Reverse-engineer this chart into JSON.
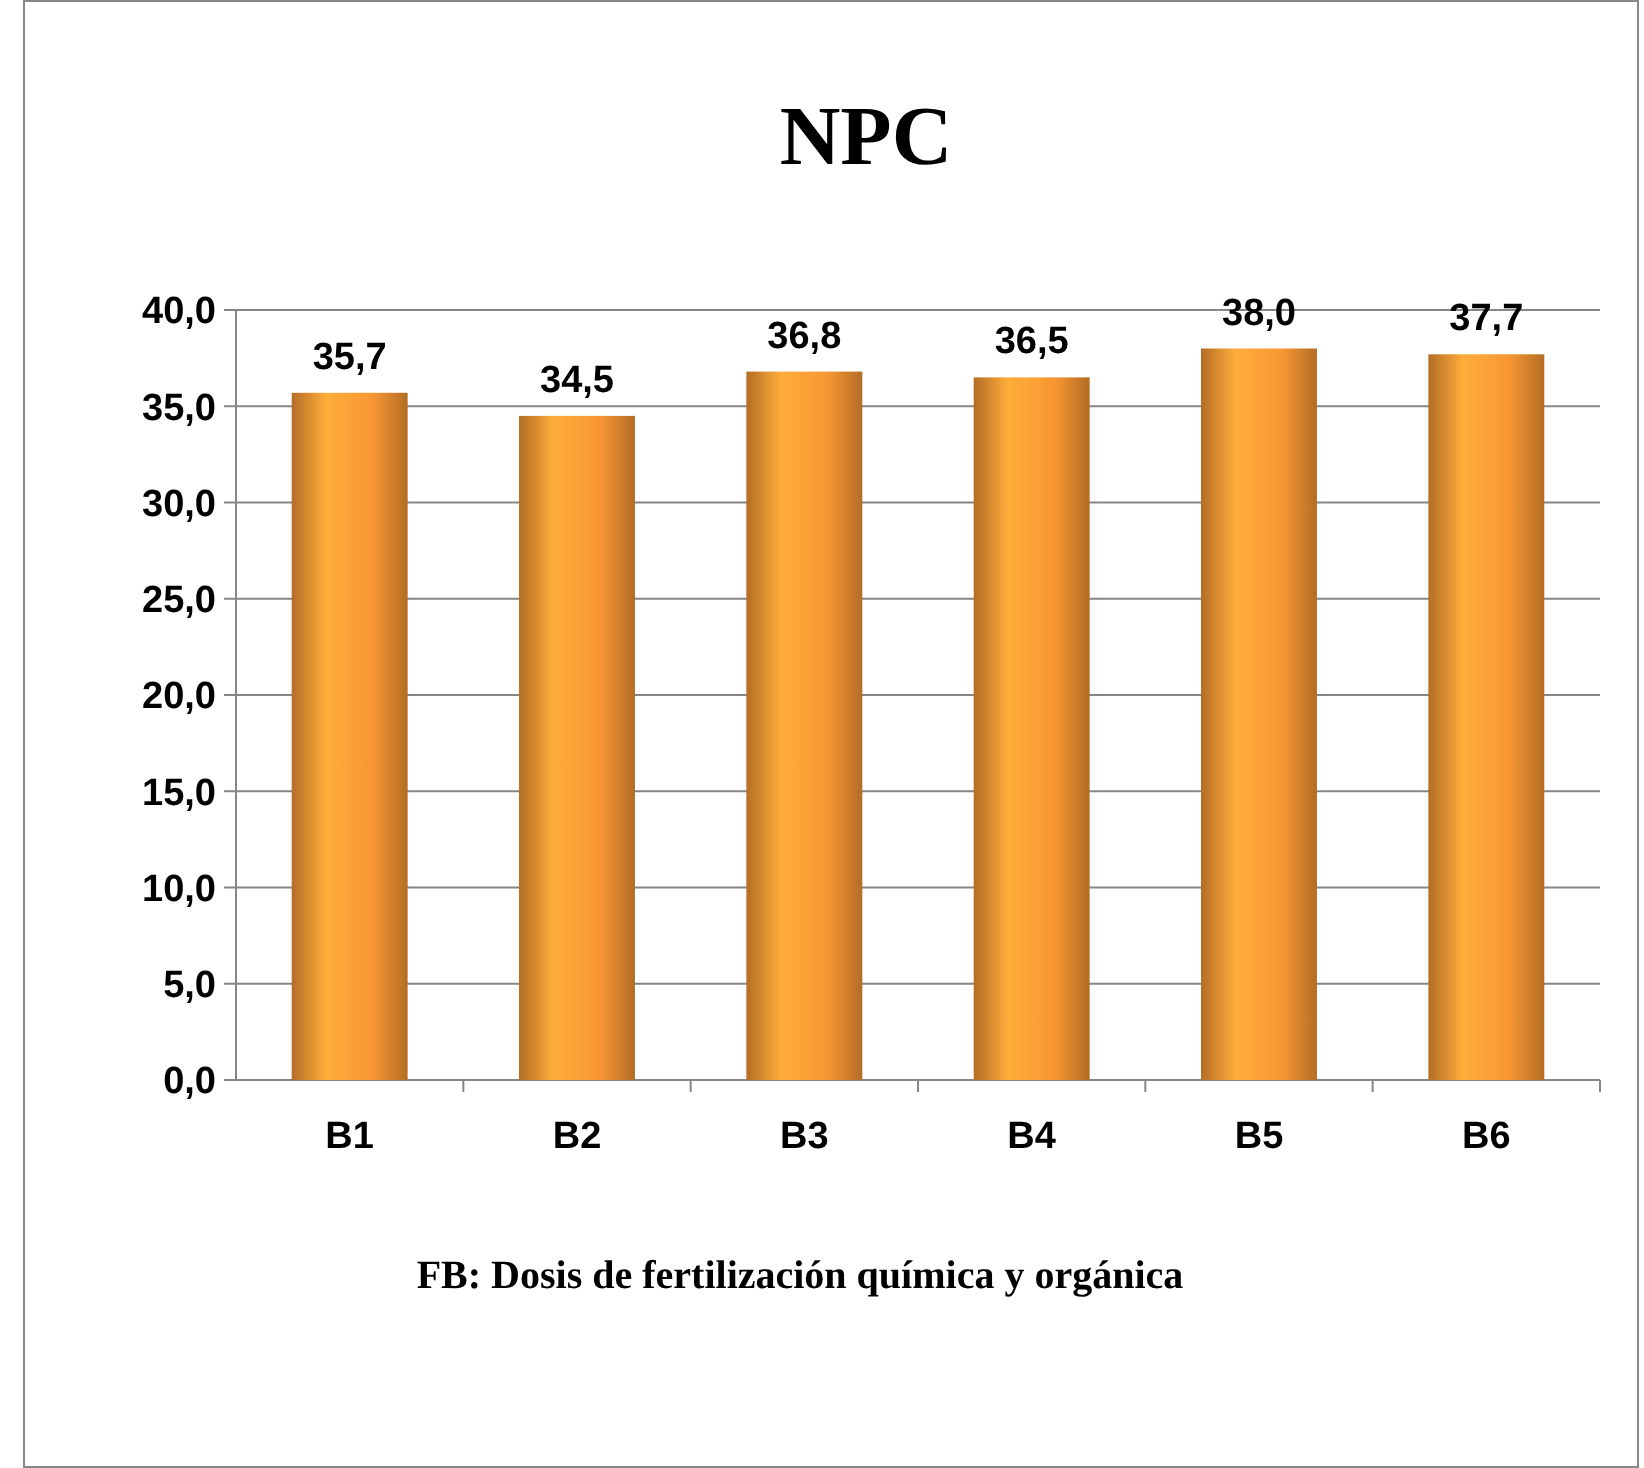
{
  "chart_data": {
    "type": "bar",
    "title": "NPC",
    "xlabel": "FB: Dosis de fertilización química y orgánica",
    "categories": [
      "B1",
      "B2",
      "B3",
      "B4",
      "B5",
      "B6"
    ],
    "values": [
      35.7,
      34.5,
      36.8,
      36.5,
      38.0,
      37.7
    ],
    "value_labels": [
      "35,7",
      "34,5",
      "36,8",
      "36,5",
      "38,0",
      "37,7"
    ],
    "color": "#f79633",
    "ylim": [
      0,
      40
    ],
    "yticks": [
      {
        "value": 0,
        "label": "0,0"
      },
      {
        "value": 5,
        "label": "5,0"
      },
      {
        "value": 10,
        "label": "10,0"
      },
      {
        "value": 15,
        "label": "15,0"
      },
      {
        "value": 20,
        "label": "20,0"
      },
      {
        "value": 25,
        "label": "25,0"
      },
      {
        "value": 30,
        "label": "30,0"
      },
      {
        "value": 35,
        "label": "35,0"
      },
      {
        "value": 40,
        "label": "40,0"
      }
    ],
    "grid": "y"
  }
}
